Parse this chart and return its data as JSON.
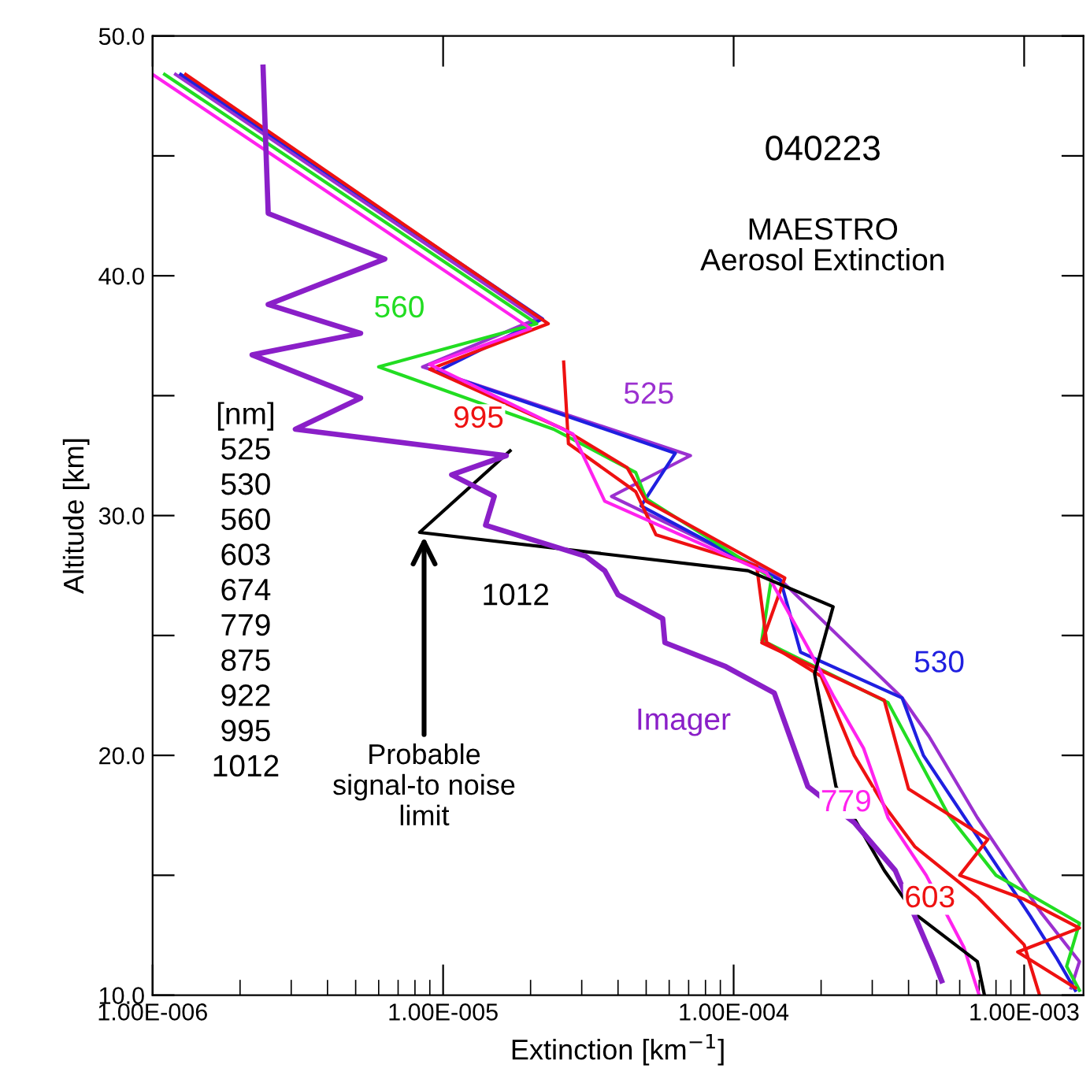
{
  "chart_data": {
    "type": "line",
    "xlabel": "Extinction [km$^{−1}$]",
    "ylabel": "Altitude [km]",
    "log": "x",
    "xlim": [
      1e-06,
      0.0016
    ],
    "ylim": [
      10,
      50
    ],
    "xticks": [
      {
        "value": 1e-06,
        "label": "1.00E-006"
      },
      {
        "value": 1e-05,
        "label": "1.00E-005"
      },
      {
        "value": 0.0001,
        "label": "1.00E-004"
      },
      {
        "value": 0.001,
        "label": "1.00E-003"
      }
    ],
    "yticks": [
      {
        "value": 10,
        "label": "10.0"
      },
      {
        "value": 15,
        "label": null
      },
      {
        "value": 20,
        "label": "20.0"
      },
      {
        "value": 25,
        "label": null
      },
      {
        "value": 30,
        "label": "30.0"
      },
      {
        "value": 35,
        "label": null
      },
      {
        "value": 40,
        "label": "40.0"
      },
      {
        "value": 45,
        "label": null
      },
      {
        "value": 50,
        "label": "50.0"
      }
    ],
    "grid": false,
    "legend": false,
    "marker": "none",
    "line_style": "solid",
    "annotations": [
      "040223",
      "MAESTRO\nAerosol Extinction",
      "[nm]\n525\n530\n560\n603\n674\n779\n875\n922\n995\n1012",
      {
        "text": "Probable\nsignal-to noise\nlimit",
        "x": 8.6e-06,
        "y": 29.3
      }
    ],
    "series": [
      {
        "name": "525",
        "color": "#9b30d0",
        "x": [
          1.2e-06,
          2.1e-05,
          8.5e-06,
          7.1e-05,
          3.8e-05,
          0.00014,
          0.00038,
          0.00047,
          0.00069,
          0.00115,
          0.00155,
          0.00145
        ],
        "values": [
          48.4,
          38.2,
          36.2,
          32.5,
          30.8,
          27.5,
          22.4,
          20.8,
          17.4,
          13.4,
          11.4,
          10.3
        ]
      },
      {
        "name": "530",
        "color": "#1f1fe0",
        "x": [
          1.25e-06,
          2.2e-05,
          9.5e-06,
          6.3e-05,
          4.8e-05,
          0.000145,
          0.00017,
          0.00038,
          0.00045,
          0.0007,
          0.00105,
          0.0013,
          0.0015
        ],
        "values": [
          48.4,
          38.2,
          36.0,
          32.6,
          30.4,
          27.3,
          24.3,
          22.4,
          20.0,
          16.5,
          13.3,
          11.5,
          10.2
        ]
      },
      {
        "name": "560",
        "color": "#22dd22",
        "x": [
          1.1e-06,
          2.1e-05,
          6e-06,
          2.4e-05,
          4.6e-05,
          5e-05,
          0.000135,
          0.000125,
          0.00034,
          0.00055,
          0.0008,
          0.00155,
          0.0014,
          0.00155
        ],
        "values": [
          48.4,
          38.0,
          36.2,
          33.6,
          31.8,
          30.7,
          27.4,
          24.8,
          22.2,
          17.5,
          15.0,
          13.0,
          11.2,
          10.2
        ]
      },
      {
        "name": "995",
        "color": "#ee1111",
        "x": [
          1.3e-06,
          2.3e-05,
          9e-06,
          2.6e-05,
          4.3e-05,
          5e-05,
          0.00015,
          0.000125,
          0.00033,
          0.0004,
          0.00075,
          0.0006,
          0.001,
          0.00155,
          0.00095,
          0.0015
        ],
        "values": [
          48.4,
          38.0,
          36.1,
          33.6,
          32.0,
          30.6,
          27.4,
          24.7,
          22.3,
          18.6,
          16.5,
          15.0,
          14.0,
          12.8,
          11.8,
          10.3
        ]
      },
      {
        "name": "603",
        "color": "#ee1111",
        "x": [
          2.6e-05,
          2.7e-05,
          4.6e-05,
          5.4e-05,
          0.00012,
          0.00013,
          0.0002,
          0.00026,
          0.00033,
          0.00042,
          0.00069,
          0.001,
          0.00113
        ],
        "values": [
          36.4,
          33.0,
          31.0,
          29.2,
          27.9,
          24.7,
          23.3,
          20.0,
          17.9,
          16.2,
          14.1,
          12.1,
          10.0
        ]
      },
      {
        "name": "779",
        "color": "#ff22ee",
        "x": [
          1e-06,
          2e-05,
          9e-06,
          2.8e-05,
          3.6e-05,
          0.00013,
          0.00018,
          0.00022,
          0.00028,
          0.00034,
          0.00046,
          0.00062,
          0.0007
        ],
        "values": [
          48.4,
          37.8,
          36.3,
          33.4,
          30.6,
          27.6,
          24.5,
          22.5,
          20.3,
          17.4,
          15.0,
          12.0,
          10.0
        ]
      },
      {
        "name": "1012",
        "color": "#000000",
        "x": [
          1.7e-05,
          8.3e-06,
          0.000112,
          0.00022,
          0.00019,
          0.00021,
          0.000225,
          0.00028,
          0.00033,
          0.00042,
          0.00069,
          0.00073
        ],
        "values": [
          32.7,
          29.3,
          27.7,
          26.2,
          23.4,
          20.6,
          18.7,
          16.7,
          15.2,
          13.4,
          11.4,
          10.0
        ]
      },
      {
        "name": "Imager",
        "color": "#8a1fc8",
        "x": [
          2.4e-06,
          2.5e-06,
          6.3e-06,
          2.5e-06,
          5.2e-06,
          2.2e-06,
          5.2e-06,
          3.1e-06,
          1.65e-05,
          1.07e-05,
          1.5e-05,
          1.4e-05,
          3.1e-05,
          3.6e-05,
          4e-05,
          5.7e-05,
          5.8e-05,
          9.4e-05,
          0.000138,
          0.00018,
          0.00026,
          0.00036,
          0.00049,
          0.00052
        ],
        "values": [
          48.7,
          42.6,
          40.7,
          38.8,
          37.6,
          36.7,
          34.9,
          33.6,
          32.5,
          31.7,
          30.8,
          29.6,
          28.3,
          27.7,
          26.7,
          25.7,
          24.7,
          23.7,
          22.6,
          18.7,
          17.2,
          15.2,
          11.4,
          10.6
        ]
      }
    ]
  }
}
